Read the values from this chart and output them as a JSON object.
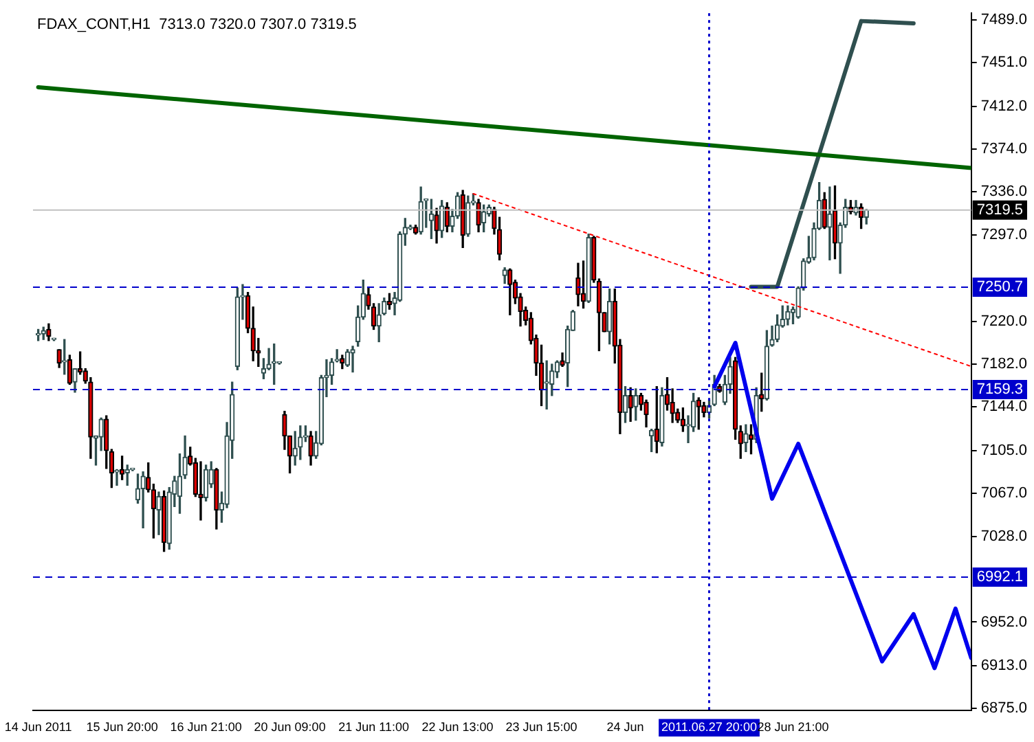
{
  "chart_data": {
    "type": "candlestick",
    "title": "FDAX_CONT,H1  7313.0 7320.0 7307.0 7319.5",
    "categories": [
      "14 Jun 2011",
      null,
      null,
      null,
      null,
      null,
      null,
      null,
      null,
      null,
      null,
      null,
      null,
      null,
      null,
      null,
      "15 Jun 20:00",
      null,
      null,
      null,
      null,
      null,
      null,
      null,
      null,
      null,
      null,
      null,
      null,
      null,
      null,
      null,
      "16 Jun 21:00",
      null,
      null,
      null,
      null,
      null,
      null,
      null,
      null,
      null,
      null,
      null,
      null,
      null,
      null,
      null,
      "20 Jun 09:00",
      null,
      null,
      null,
      null,
      null,
      null,
      null,
      null,
      null,
      null,
      null,
      null,
      null,
      null,
      null,
      "21 Jun 11:00",
      null,
      null,
      null,
      null,
      null,
      null,
      null,
      null,
      null,
      null,
      null,
      null,
      null,
      null,
      null,
      "22 Jun 13:00",
      null,
      null,
      null,
      null,
      null,
      null,
      null,
      null,
      null,
      null,
      null,
      null,
      null,
      null,
      null,
      "23 Jun 15:00",
      null,
      null,
      null,
      null,
      null,
      null,
      null,
      null,
      null,
      null,
      null,
      null,
      null,
      null,
      null,
      "24 Jun",
      null,
      null,
      null,
      null,
      null,
      null,
      null,
      null,
      null,
      null,
      null,
      null,
      null,
      null,
      null,
      "2011.06.27 20:00",
      null,
      null,
      null,
      null,
      null,
      null,
      null,
      null,
      null,
      null,
      null,
      null,
      null,
      null,
      null,
      "28 Jun 21:00",
      null,
      null,
      null,
      null,
      null,
      null,
      null,
      null,
      null,
      null,
      null,
      null,
      null,
      null,
      null,
      null,
      null,
      null,
      null,
      null,
      null,
      null,
      null,
      null,
      null,
      null,
      null,
      null,
      null,
      null,
      null,
      null,
      null,
      null
    ],
    "ohlc": [
      [
        7208,
        7213,
        7203,
        7208
      ],
      [
        7209,
        7215,
        7204,
        7212
      ],
      [
        7213,
        7218,
        7203,
        7207
      ],
      [
        7204,
        7205,
        7203,
        7204
      ],
      [
        7195,
        7195,
        7179,
        7183
      ],
      [
        7184,
        7204,
        7173,
        7185
      ],
      [
        7186,
        7190,
        7164,
        7165
      ],
      [
        7166,
        7178,
        7157,
        7178
      ],
      [
        7178,
        7193,
        7173,
        7175
      ],
      [
        7176,
        7178,
        7165,
        7167
      ],
      [
        7166,
        7170,
        7098,
        7117
      ],
      [
        7116,
        7118,
        7092,
        7118
      ],
      [
        7117,
        7134,
        7105,
        7133
      ],
      [
        7133,
        7136,
        7089,
        7105
      ],
      [
        7104,
        7106,
        7072,
        7085
      ],
      [
        7086,
        7088,
        7074,
        7087
      ],
      [
        7088,
        7100,
        7079,
        7084
      ],
      [
        7085,
        7092,
        7074,
        7088
      ],
      [
        7088,
        7089,
        7087,
        7088
      ],
      [
        7061,
        7084,
        7058,
        7071
      ],
      [
        7071,
        7086,
        7036,
        7082
      ],
      [
        7081,
        7094,
        7068,
        7070
      ],
      [
        7070,
        7075,
        7027,
        7053
      ],
      [
        7052,
        7068,
        7030,
        7064
      ],
      [
        7064,
        7069,
        7015,
        7023
      ],
      [
        7022,
        7072,
        7017,
        7068
      ],
      [
        7066,
        7082,
        7055,
        7078
      ],
      [
        7064,
        7102,
        7049,
        7082
      ],
      [
        7083,
        7118,
        7080,
        7099
      ],
      [
        7100,
        7108,
        7092,
        7093
      ],
      [
        7094,
        7098,
        7064,
        7066
      ],
      [
        7066,
        7095,
        7043,
        7063
      ],
      [
        7063,
        7092,
        7060,
        7088
      ],
      [
        7075,
        7095,
        7072,
        7088
      ],
      [
        7088,
        7089,
        7035,
        7052
      ],
      [
        7052,
        7068,
        7041,
        7058
      ],
      [
        7057,
        7130,
        7054,
        7118
      ],
      [
        7114,
        7166,
        7098,
        7155
      ],
      [
        7180,
        7250,
        7177,
        7242
      ],
      [
        7242,
        7253,
        7222,
        7243
      ],
      [
        7243,
        7246,
        7210,
        7214
      ],
      [
        7214,
        7233,
        7185,
        7194
      ],
      [
        7194,
        7205,
        7180,
        7192
      ],
      [
        7174,
        7187,
        7169,
        7178
      ],
      [
        7178,
        7196,
        7177,
        7182
      ],
      [
        7183,
        7200,
        7164,
        7183
      ],
      [
        7183,
        7184,
        7182,
        7183
      ],
      [
        7137,
        7140,
        7106,
        7118
      ],
      [
        7118,
        7118,
        7085,
        7100
      ],
      [
        7100,
        7122,
        7092,
        7107
      ],
      [
        7108,
        7127,
        7097,
        7117
      ],
      [
        7117,
        7127,
        7113,
        7118
      ],
      [
        7118,
        7122,
        7092,
        7100
      ],
      [
        7100,
        7122,
        7098,
        7112
      ],
      [
        7111,
        7172,
        7110,
        7170
      ],
      [
        7170,
        7186,
        7153,
        7172
      ],
      [
        7172,
        7187,
        7164,
        7184
      ],
      [
        7185,
        7195,
        7184,
        7186
      ],
      [
        7187,
        7190,
        7178,
        7183
      ],
      [
        7181,
        7195,
        7180,
        7193
      ],
      [
        7192,
        7198,
        7175,
        7195
      ],
      [
        7202,
        7234,
        7198,
        7224
      ],
      [
        7224,
        7257,
        7222,
        7245
      ],
      [
        7244,
        7250,
        7231,
        7234
      ],
      [
        7233,
        7236,
        7213,
        7216
      ],
      [
        7216,
        7236,
        7202,
        7226
      ],
      [
        7227,
        7241,
        7226,
        7238
      ],
      [
        7238,
        7245,
        7231,
        7235
      ],
      [
        7236,
        7246,
        7226,
        7241
      ],
      [
        7239,
        7300,
        7238,
        7298
      ],
      [
        7298,
        7312,
        7288,
        7304
      ],
      [
        7303,
        7306,
        7302,
        7304
      ],
      [
        7304,
        7306,
        7298,
        7299
      ],
      [
        7300,
        7340,
        7298,
        7327
      ],
      [
        7328,
        7329,
        7304,
        7328
      ],
      [
        7310,
        7329,
        7294,
        7316
      ],
      [
        7315,
        7321,
        7290,
        7301
      ],
      [
        7301,
        7328,
        7295,
        7323
      ],
      [
        7322,
        7326,
        7300,
        7305
      ],
      [
        7305,
        7320,
        7300,
        7314
      ],
      [
        7314,
        7335,
        7312,
        7332
      ],
      [
        7333,
        7337,
        7286,
        7297
      ],
      [
        7298,
        7332,
        7296,
        7326
      ],
      [
        7326,
        7334,
        7324,
        7326
      ],
      [
        7326,
        7329,
        7300,
        7306
      ],
      [
        7308,
        7324,
        7300,
        7318
      ],
      [
        7316,
        7324,
        7314,
        7322
      ],
      [
        7320,
        7322,
        7298,
        7303
      ],
      [
        7302,
        7313,
        7275,
        7280
      ],
      [
        7261,
        7268,
        7254,
        7266
      ],
      [
        7266,
        7267,
        7226,
        7253
      ],
      [
        7255,
        7257,
        7236,
        7241
      ],
      [
        7242,
        7245,
        7216,
        7229
      ],
      [
        7230,
        7233,
        7217,
        7221
      ],
      [
        7223,
        7228,
        7200,
        7203
      ],
      [
        7205,
        7208,
        7172,
        7183
      ],
      [
        7183,
        7199,
        7145,
        7159
      ],
      [
        7165,
        7185,
        7142,
        7165
      ],
      [
        7164,
        7182,
        7154,
        7176
      ],
      [
        7175,
        7185,
        7170,
        7184
      ],
      [
        7185,
        7192,
        7180,
        7181
      ],
      [
        7183,
        7216,
        7162,
        7213
      ],
      [
        7212,
        7230,
        7212,
        7229
      ],
      [
        7259,
        7272,
        7234,
        7244
      ],
      [
        7245,
        7274,
        7232,
        7238
      ],
      [
        7238,
        7298,
        7237,
        7295
      ],
      [
        7295,
        7296,
        7255,
        7257
      ],
      [
        7256,
        7258,
        7194,
        7228
      ],
      [
        7228,
        7228,
        7211,
        7211
      ],
      [
        7211,
        7249,
        7200,
        7238
      ],
      [
        7238,
        7249,
        7183,
        7198
      ],
      [
        7199,
        7204,
        7120,
        7139
      ],
      [
        7139,
        7162,
        7130,
        7154
      ],
      [
        7154,
        7161,
        7131,
        7143
      ],
      [
        7144,
        7160,
        7132,
        7154
      ],
      [
        7154,
        7156,
        7141,
        7146
      ],
      [
        7148,
        7150,
        7126,
        7137
      ],
      [
        7118,
        7124,
        7104,
        7123
      ],
      [
        7124,
        7162,
        7103,
        7113
      ],
      [
        7112,
        7161,
        7109,
        7154
      ],
      [
        7155,
        7170,
        7141,
        7146
      ],
      [
        7148,
        7160,
        7130,
        7138
      ],
      [
        7139,
        7142,
        7130,
        7132
      ],
      [
        7133,
        7143,
        7122,
        7127
      ],
      [
        7127,
        7136,
        7112,
        7127
      ],
      [
        7126,
        7156,
        7122,
        7149
      ],
      [
        7150,
        7152,
        7124,
        7144
      ],
      [
        7145,
        7148,
        7135,
        7139
      ],
      [
        7139,
        7150,
        7134,
        7145
      ],
      [
        7146,
        7172,
        7145,
        7164
      ],
      [
        7162,
        7164,
        7157,
        7158
      ],
      [
        7148,
        7172,
        7146,
        7164
      ],
      [
        7164,
        7188,
        7156,
        7180
      ],
      [
        7185,
        7188,
        7115,
        7124
      ],
      [
        7122,
        7127,
        7098,
        7111
      ],
      [
        7112,
        7128,
        7104,
        7120
      ],
      [
        7119,
        7128,
        7102,
        7115
      ],
      [
        7115,
        7161,
        7112,
        7154
      ],
      [
        7155,
        7174,
        7140,
        7151
      ],
      [
        7151,
        7212,
        7150,
        7198
      ],
      [
        7199,
        7216,
        7198,
        7204
      ],
      [
        7204,
        7226,
        7202,
        7217
      ],
      [
        7216,
        7234,
        7215,
        7222
      ],
      [
        7222,
        7234,
        7217,
        7229
      ],
      [
        7228,
        7233,
        7218,
        7231
      ],
      [
        7224,
        7251,
        7223,
        7250
      ],
      [
        7250,
        7276,
        7248,
        7274
      ],
      [
        7273,
        7296,
        7272,
        7277
      ],
      [
        7277,
        7308,
        7275,
        7303
      ],
      [
        7303,
        7344,
        7302,
        7328
      ],
      [
        7329,
        7335,
        7303,
        7304
      ],
      [
        7304,
        7340,
        7275,
        7316
      ],
      [
        7319,
        7341,
        7276,
        7290
      ],
      [
        7290,
        7308,
        7263,
        7306
      ],
      [
        7306,
        7329,
        7304,
        7322
      ],
      [
        7322,
        7328,
        7316,
        7318
      ],
      [
        7317,
        7328,
        7315,
        7322
      ],
      [
        7322,
        7325,
        7303,
        7313
      ],
      [
        7313,
        7320,
        7307,
        7319.5
      ],
      null,
      null,
      null,
      null,
      null,
      null,
      null,
      null,
      null,
      null,
      null,
      null,
      null,
      null,
      null,
      null,
      null,
      null,
      null,
      null
    ],
    "series": [
      {
        "type": "line",
        "color": "#006400",
        "values": [
          7429,
          null,
          null,
          null,
          null,
          null,
          null,
          null,
          null,
          null,
          null,
          null,
          null,
          null,
          null,
          null,
          null,
          null,
          null,
          null,
          null,
          null,
          null,
          null,
          null,
          null,
          null,
          null,
          null,
          null,
          null,
          null,
          null,
          null,
          null,
          null,
          null,
          null,
          null,
          null,
          null,
          null,
          null,
          null,
          null,
          null,
          null,
          null,
          null,
          null,
          null,
          null,
          null,
          null,
          null,
          null,
          null,
          null,
          null,
          null,
          null,
          null,
          null,
          null,
          null,
          null,
          null,
          null,
          null,
          null,
          null,
          null,
          null,
          null,
          null,
          null,
          null,
          null,
          null,
          null,
          null,
          null,
          null,
          null,
          null,
          null,
          null,
          null,
          null,
          null,
          null,
          null,
          null,
          null,
          null,
          null,
          null,
          null,
          null,
          null,
          null,
          null,
          null,
          null,
          null,
          null,
          null,
          null,
          null,
          null,
          null,
          null,
          null,
          null,
          null,
          null,
          null,
          null,
          null,
          null,
          null,
          null,
          null,
          null,
          null,
          null,
          null,
          null,
          null,
          null,
          null,
          null,
          null,
          null,
          null,
          null,
          null,
          null,
          null,
          null,
          null,
          null,
          null,
          null,
          null,
          null,
          null,
          null,
          null,
          null,
          null,
          null,
          null,
          null,
          null,
          null,
          null,
          null,
          null,
          null,
          null,
          null,
          null,
          null,
          null,
          null,
          null,
          null,
          null,
          null,
          null,
          null,
          null,
          null,
          null,
          null,
          null,
          null,
          7357
        ]
      },
      {
        "type": "line",
        "color": "#ff0000",
        "line_style": "dotted",
        "values": [
          null,
          null,
          null,
          null,
          null,
          null,
          null,
          null,
          null,
          null,
          null,
          null,
          null,
          null,
          null,
          null,
          null,
          null,
          null,
          null,
          null,
          null,
          null,
          null,
          null,
          null,
          null,
          null,
          null,
          null,
          null,
          null,
          null,
          null,
          null,
          null,
          null,
          null,
          null,
          null,
          null,
          null,
          null,
          null,
          null,
          null,
          null,
          null,
          null,
          null,
          null,
          null,
          null,
          null,
          null,
          null,
          null,
          null,
          null,
          null,
          null,
          null,
          null,
          null,
          null,
          null,
          null,
          null,
          null,
          null,
          null,
          null,
          null,
          null,
          null,
          null,
          null,
          null,
          null,
          null,
          null,
          null,
          null,
          7334,
          null,
          null,
          null,
          null,
          null,
          null,
          null,
          null,
          null,
          null,
          null,
          null,
          null,
          null,
          null,
          null,
          null,
          null,
          null,
          null,
          null,
          null,
          null,
          null,
          null,
          null,
          null,
          null,
          null,
          null,
          null,
          null,
          null,
          null,
          null,
          null,
          null,
          null,
          null,
          null,
          null,
          null,
          null,
          null,
          null,
          null,
          null,
          null,
          null,
          null,
          null,
          null,
          null,
          null,
          null,
          null,
          null,
          null,
          null,
          null,
          null,
          null,
          null,
          null,
          null,
          null,
          null,
          null,
          null,
          null,
          null,
          null,
          null,
          null,
          null,
          null,
          null,
          null,
          null,
          null,
          null,
          null,
          null,
          null,
          null,
          null,
          null,
          null,
          null,
          null,
          null,
          null,
          null,
          null,
          7180
        ]
      },
      {
        "type": "line",
        "color": "#2f4f4f",
        "values": [
          null,
          null,
          null,
          null,
          null,
          null,
          null,
          null,
          null,
          null,
          null,
          null,
          null,
          null,
          null,
          null,
          null,
          null,
          null,
          null,
          null,
          null,
          null,
          null,
          null,
          null,
          null,
          null,
          null,
          null,
          null,
          null,
          null,
          null,
          null,
          null,
          null,
          null,
          null,
          null,
          null,
          null,
          null,
          null,
          null,
          null,
          null,
          null,
          null,
          null,
          null,
          null,
          null,
          null,
          null,
          null,
          null,
          null,
          null,
          null,
          null,
          null,
          null,
          null,
          null,
          null,
          null,
          null,
          null,
          null,
          null,
          null,
          null,
          null,
          null,
          null,
          null,
          null,
          null,
          null,
          null,
          null,
          null,
          null,
          null,
          null,
          null,
          null,
          null,
          null,
          null,
          null,
          null,
          null,
          null,
          null,
          null,
          null,
          null,
          null,
          null,
          null,
          null,
          null,
          null,
          null,
          null,
          null,
          null,
          null,
          null,
          null,
          null,
          null,
          null,
          null,
          null,
          null,
          null,
          null,
          null,
          null,
          null,
          null,
          null,
          null,
          null,
          null,
          null,
          null,
          null,
          null,
          null,
          null,
          null,
          null,
          7251,
          null,
          null,
          null,
          null,
          7251,
          null,
          null,
          null,
          null,
          null,
          null,
          null,
          null,
          null,
          null,
          null,
          null,
          null,
          null,
          null,
          7488,
          null,
          null,
          null,
          null,
          null,
          null,
          null,
          null,
          null,
          7486,
          null,
          null,
          null,
          null,
          null,
          null,
          null,
          null,
          null,
          null,
          null
        ]
      },
      {
        "type": "line",
        "color": "#0000ee",
        "values": [
          null,
          null,
          null,
          null,
          null,
          null,
          null,
          null,
          null,
          null,
          null,
          null,
          null,
          null,
          null,
          null,
          null,
          null,
          null,
          null,
          null,
          null,
          null,
          null,
          null,
          null,
          null,
          null,
          null,
          null,
          null,
          null,
          null,
          null,
          null,
          null,
          null,
          null,
          null,
          null,
          null,
          null,
          null,
          null,
          null,
          null,
          null,
          null,
          null,
          null,
          null,
          null,
          null,
          null,
          null,
          null,
          null,
          null,
          null,
          null,
          null,
          null,
          null,
          null,
          null,
          null,
          null,
          null,
          null,
          null,
          null,
          null,
          null,
          null,
          null,
          null,
          null,
          null,
          null,
          null,
          null,
          null,
          null,
          null,
          null,
          null,
          null,
          null,
          null,
          null,
          null,
          null,
          null,
          null,
          null,
          null,
          null,
          null,
          null,
          null,
          null,
          null,
          null,
          null,
          null,
          null,
          null,
          null,
          null,
          null,
          null,
          null,
          null,
          null,
          null,
          null,
          null,
          null,
          null,
          null,
          null,
          null,
          null,
          null,
          null,
          null,
          null,
          null,
          null,
          7162,
          null,
          null,
          null,
          7201,
          null,
          null,
          null,
          null,
          null,
          null,
          7062,
          null,
          null,
          null,
          null,
          7111,
          null,
          null,
          null,
          null,
          null,
          null,
          null,
          null,
          null,
          null,
          null,
          null,
          null,
          null,
          null,
          6917,
          null,
          null,
          null,
          null,
          null,
          6959,
          null,
          null,
          null,
          6911,
          null,
          null,
          null,
          6964,
          null,
          null,
          6920
        ]
      }
    ],
    "ylim": [
      6873,
      7495
    ],
    "yticks": [
      {
        "value": 6875,
        "label": "6875.0"
      },
      {
        "value": 6913,
        "label": "6913.0"
      },
      {
        "value": 6952,
        "label": "6952.0"
      },
      {
        "value": 7028,
        "label": "7028.0"
      },
      {
        "value": 7067,
        "label": "7067.0"
      },
      {
        "value": 7105,
        "label": "7105.0"
      },
      {
        "value": 7144,
        "label": "7144.0"
      },
      {
        "value": 7182,
        "label": "7182.0"
      },
      {
        "value": 7220,
        "label": "7220.0"
      },
      {
        "value": 7297,
        "label": "7297.0"
      },
      {
        "value": 7336,
        "label": "7336.0"
      },
      {
        "value": 7374,
        "label": "7374.0"
      },
      {
        "value": 7412,
        "label": "7412.0"
      },
      {
        "value": 7451,
        "label": "7451.0"
      },
      {
        "value": 7489,
        "label": "7489.0"
      }
    ],
    "ref_lines": [
      {
        "axis": "y",
        "value": 7319.5,
        "label": "7319.5",
        "color": "#c0c0c0",
        "line_style": "solid"
      },
      {
        "axis": "y",
        "value": 7250.7,
        "label": "7250.7",
        "color": "#0000cc",
        "line_style": "dashed"
      },
      {
        "axis": "y",
        "value": 7159.3,
        "label": "7159.3",
        "color": "#0000cc",
        "line_style": "dashed"
      },
      {
        "axis": "y",
        "value": 6992.1,
        "label": "6992.1",
        "color": "#0000cc",
        "line_style": "dashed"
      },
      {
        "axis": "x",
        "value": "2011.06.27 20:00",
        "color": "#0000cc",
        "line_style": "dotted"
      }
    ],
    "grid": false,
    "legend": false
  }
}
